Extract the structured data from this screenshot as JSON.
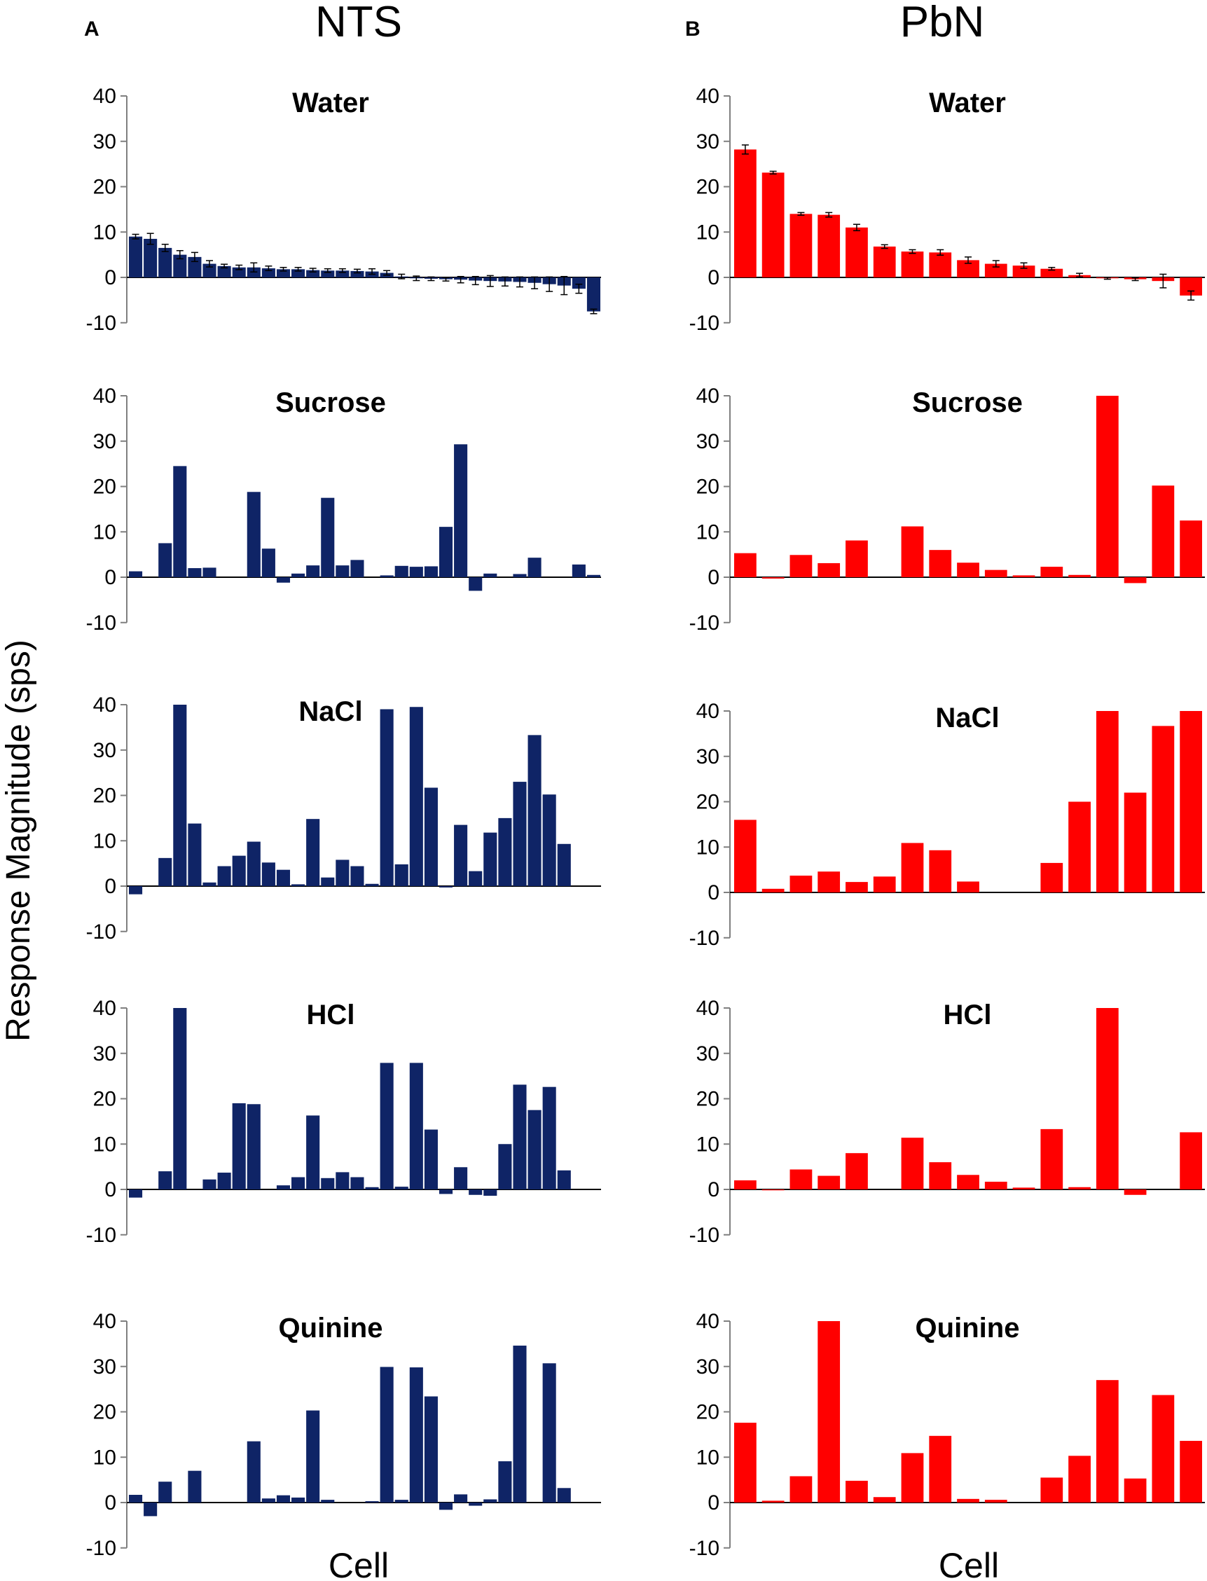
{
  "figure": {
    "ylabel": "Response Magnitude  (sps)",
    "columns": [
      {
        "letter": "A",
        "title": "NTS",
        "xlabel": "Cell",
        "color": "#0f2466"
      },
      {
        "letter": "B",
        "title": "PbN",
        "xlabel": "Cell",
        "color": "#ff0000"
      }
    ]
  },
  "chart_data": [
    {
      "type": "bar",
      "title": "Water",
      "column": "NTS",
      "ylim": [
        -10,
        40
      ],
      "yticks": [
        40,
        30,
        20,
        10,
        0,
        -10
      ],
      "errorbars": true,
      "values": [
        9,
        8.5,
        6.5,
        5,
        4.5,
        3,
        2.5,
        2.2,
        2.2,
        2,
        1.8,
        1.8,
        1.6,
        1.5,
        1.5,
        1.4,
        1.3,
        1,
        0.2,
        -0.2,
        -0.3,
        -0.4,
        -0.5,
        -0.7,
        -0.8,
        -0.9,
        -1,
        -1.2,
        -1.5,
        -1.8,
        -2.5,
        -7.5
      ],
      "errors": [
        0.5,
        1.2,
        0.8,
        0.9,
        1,
        0.7,
        0.4,
        0.5,
        1,
        0.5,
        0.4,
        0.4,
        0.4,
        0.4,
        0.4,
        0.4,
        0.6,
        0.5,
        0.5,
        0.5,
        0.4,
        0.4,
        0.7,
        0.9,
        1.2,
        1,
        1.1,
        1.3,
        1.6,
        2,
        1,
        0.5
      ]
    },
    {
      "type": "bar",
      "title": "Sucrose",
      "column": "NTS",
      "ylim": [
        -10,
        40
      ],
      "yticks": [
        40,
        30,
        20,
        10,
        0,
        -10
      ],
      "values": [
        1.3,
        0,
        7.5,
        24.5,
        2,
        2.1,
        0,
        0,
        18.8,
        6.3,
        -1.2,
        0.8,
        2.6,
        17.5,
        2.6,
        3.8,
        0,
        0.4,
        2.5,
        2.3,
        2.4,
        11.1,
        29.3,
        -3,
        0.8,
        0,
        0.7,
        4.3,
        0,
        0,
        2.8,
        0.5
      ]
    },
    {
      "type": "bar",
      "title": "NaCl",
      "column": "NTS",
      "ylim": [
        -10,
        40
      ],
      "yticks": [
        40,
        30,
        20,
        10,
        0,
        -10
      ],
      "values": [
        -1.8,
        0,
        6.2,
        40,
        13.8,
        0.8,
        4.4,
        6.7,
        9.8,
        5.2,
        3.6,
        0.4,
        14.8,
        1.9,
        5.8,
        4.4,
        0.5,
        39,
        4.8,
        39.5,
        21.7,
        -0.3,
        13.5,
        3.3,
        11.8,
        15,
        23,
        33.3,
        20.2,
        9.3,
        0,
        0
      ]
    },
    {
      "type": "bar",
      "title": "HCl",
      "column": "NTS",
      "ylim": [
        -10,
        40
      ],
      "yticks": [
        40,
        30,
        20,
        10,
        0,
        -10
      ],
      "values": [
        -1.8,
        0,
        4,
        40,
        0,
        2.2,
        3.7,
        19,
        18.8,
        0,
        0.9,
        2.7,
        16.3,
        2.5,
        3.8,
        2.7,
        0.5,
        27.9,
        0.6,
        27.9,
        13.2,
        -1,
        4.9,
        -1.2,
        -1.4,
        10,
        23.1,
        17.5,
        22.6,
        4.2,
        0,
        0
      ]
    },
    {
      "type": "bar",
      "title": "Quinine",
      "column": "NTS",
      "ylim": [
        -10,
        40
      ],
      "yticks": [
        40,
        30,
        20,
        10,
        0,
        -10
      ],
      "values": [
        1.7,
        -3,
        4.6,
        0,
        7,
        0,
        0,
        0,
        13.5,
        0.9,
        1.6,
        1.1,
        20.3,
        0.6,
        0,
        0,
        0.3,
        29.9,
        0.6,
        29.8,
        23.4,
        -1.6,
        1.8,
        -0.7,
        0.7,
        9.1,
        34.6,
        0,
        30.7,
        3.2,
        0,
        0
      ]
    },
    {
      "type": "bar",
      "title": "Water",
      "column": "PbN",
      "ylim": [
        -10,
        40
      ],
      "yticks": [
        40,
        30,
        20,
        10,
        0,
        -10
      ],
      "errorbars": true,
      "values": [
        28.2,
        23.1,
        14,
        13.8,
        11,
        6.8,
        5.7,
        5.5,
        3.8,
        3,
        2.6,
        1.9,
        0.5,
        -0.2,
        -0.4,
        -0.8,
        -4
      ],
      "errors": [
        1,
        0.3,
        0.3,
        0.5,
        0.7,
        0.4,
        0.4,
        0.6,
        0.7,
        0.7,
        0.6,
        0.3,
        0.4,
        0.2,
        0.3,
        1.5,
        1
      ]
    },
    {
      "type": "bar",
      "title": "Sucrose",
      "column": "PbN",
      "ylim": [
        -10,
        40
      ],
      "yticks": [
        40,
        30,
        20,
        10,
        0,
        -10
      ],
      "values": [
        5.3,
        -0.3,
        4.9,
        3.1,
        8.1,
        0,
        11.2,
        6,
        3.2,
        1.6,
        0.4,
        2.3,
        0.5,
        40,
        -1.3,
        20.2,
        12.5
      ]
    },
    {
      "type": "bar",
      "title": "NaCl",
      "column": "PbN",
      "ylim": [
        -10,
        40
      ],
      "yticks": [
        40,
        30,
        20,
        10,
        0,
        -10
      ],
      "values": [
        16,
        0.8,
        3.7,
        4.6,
        2.3,
        3.5,
        10.9,
        9.3,
        2.4,
        0,
        0,
        6.5,
        20,
        40,
        22,
        36.7,
        40
      ]
    },
    {
      "type": "bar",
      "title": "HCl",
      "column": "PbN",
      "ylim": [
        -10,
        40
      ],
      "yticks": [
        40,
        30,
        20,
        10,
        0,
        -10
      ],
      "values": [
        2,
        -0.2,
        4.4,
        3,
        8,
        0,
        11.4,
        6,
        3.2,
        1.7,
        0.4,
        13.3,
        0.5,
        40,
        -1.2,
        0,
        12.6
      ]
    },
    {
      "type": "bar",
      "title": "Quinine",
      "column": "PbN",
      "ylim": [
        -10,
        40
      ],
      "yticks": [
        40,
        30,
        20,
        10,
        0,
        -10
      ],
      "values": [
        17.6,
        0.4,
        5.8,
        40,
        4.8,
        1.2,
        10.9,
        14.7,
        0.8,
        0.6,
        0,
        5.5,
        10.3,
        27,
        5.3,
        23.7,
        13.6
      ]
    }
  ]
}
